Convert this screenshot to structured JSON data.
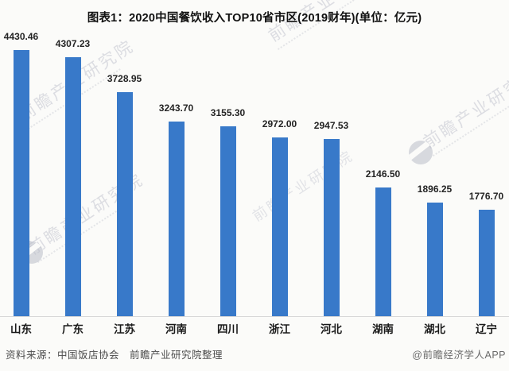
{
  "title": "图表1：2020中国餐饮收入TOP10省市区(2019财年)(单位：亿元)",
  "chart_data": {
    "type": "bar",
    "title": "图表1：2020中国餐饮收入TOP10省市区(2019财年)(单位：亿元)",
    "unit": "亿元",
    "categories": [
      "山东",
      "广东",
      "江苏",
      "河南",
      "四川",
      "浙江",
      "河北",
      "湖南",
      "湖北",
      "辽宁"
    ],
    "values": [
      4430.46,
      4307.23,
      3728.95,
      3243.7,
      3155.3,
      2972.0,
      2947.53,
      2146.5,
      1896.25,
      1776.7
    ],
    "value_labels": [
      "4430.46",
      "4307.23",
      "3728.95",
      "3243.70",
      "3155.30",
      "2972.00",
      "2947.53",
      "2146.50",
      "1896.25",
      "1776.70"
    ],
    "xlabel": "",
    "ylabel": "",
    "ylim": [
      0,
      4430.46
    ],
    "y_axis_visible": false,
    "grid": false,
    "legend": false,
    "bar_color": "#3879c9"
  },
  "footer": {
    "source": "资料来源：中国饭店协会　前瞻产业研究院整理",
    "credit": "@前瞻经济学人APP"
  },
  "watermark": {
    "text": "前瞻产业研究院",
    "color": "#aeb2c0"
  },
  "colors": {
    "background": "#fbfbf9",
    "bar": "#3879c9",
    "axis_line": "#d7d7d7",
    "text": "#1f1f1f"
  }
}
